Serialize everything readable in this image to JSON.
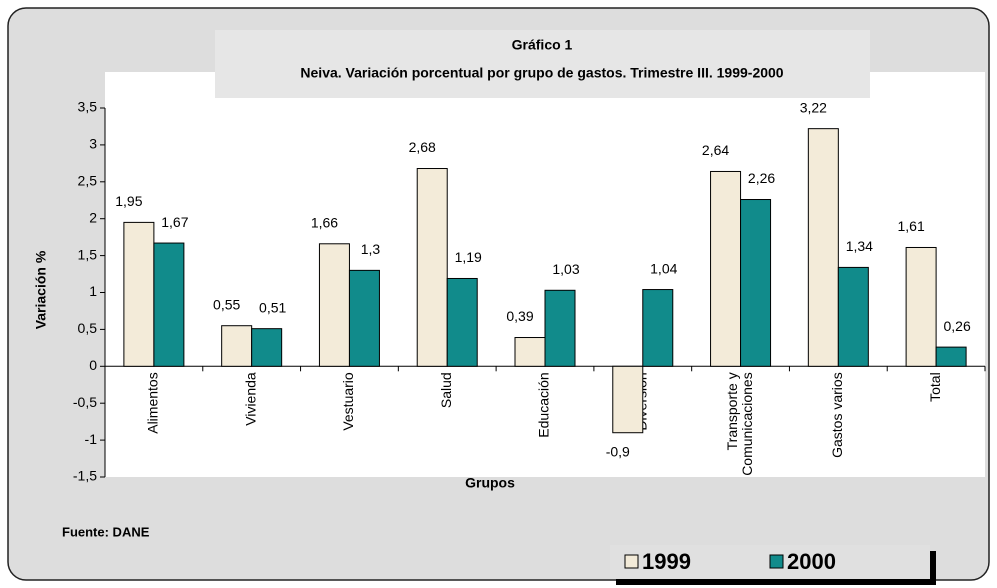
{
  "chart_data": {
    "type": "bar",
    "title": "Gráfico 1",
    "subtitle": "Neiva. Variación  porcentual por grupo de gastos. Trimestre III. 1999-2000",
    "x_label": "Grupos",
    "y_label": "Variación %",
    "source": "Fuente: DANE",
    "categories": [
      "Alimentos",
      "Vivienda",
      "Vestuario",
      "Salud",
      "Educación",
      "Diversión",
      "Transporte y Comunicaciones",
      "Gastos varios",
      "Total"
    ],
    "series": [
      {
        "name": "1999",
        "color": "#f3ebd9",
        "values": [
          1.95,
          0.55,
          1.66,
          2.68,
          0.39,
          -0.9,
          2.64,
          3.22,
          1.61
        ],
        "value_labels": [
          "1,95",
          "0,55",
          "1,66",
          "2,68",
          "0,39",
          "-0,9",
          "2,64",
          "3,22",
          "1,61"
        ]
      },
      {
        "name": "2000",
        "color": "#118b8b",
        "values": [
          1.67,
          0.51,
          1.3,
          1.19,
          1.03,
          1.04,
          2.26,
          1.34,
          0.26
        ],
        "value_labels": [
          "1,67",
          "0,51",
          "1,3",
          "1,19",
          "1,03",
          "1,04",
          "2,26",
          "1,34",
          "0,26"
        ]
      }
    ],
    "ylim": [
      -1.5,
      3.5
    ],
    "yticks": [
      {
        "value": -1.5,
        "label": "-1,5"
      },
      -1,
      {
        "value": -0.5,
        "label": "-0,5"
      },
      0,
      {
        "value": 0.5,
        "label": "0,5"
      },
      1,
      {
        "value": 1.5,
        "label": "1,5"
      },
      2,
      {
        "value": 2.5,
        "label": "2,5"
      },
      3,
      {
        "value": 3.5,
        "label": "3,5"
      }
    ],
    "legend": "bottom-right"
  }
}
